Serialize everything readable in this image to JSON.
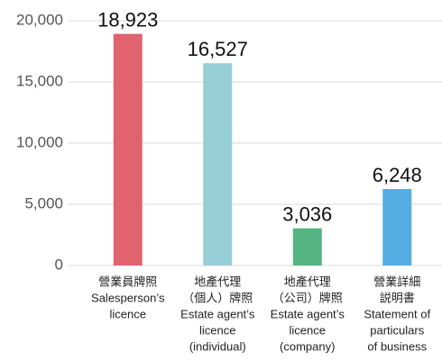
{
  "chart_data": {
    "type": "bar",
    "categories": [
      [
        "營業員牌照",
        "Salesperson’s",
        "licence"
      ],
      [
        "地產代理",
        "（個人）牌照",
        "Estate agent’s",
        "licence",
        "(individual)"
      ],
      [
        "地產代理",
        "（公司）牌照",
        "Estate agent’s",
        "licence",
        "(company)"
      ],
      [
        "營業詳細",
        "説明書",
        "Statement of",
        "particulars",
        "of business"
      ]
    ],
    "values": [
      18923,
      16527,
      3036,
      6248
    ],
    "value_labels": [
      "18,923",
      "16,527",
      "3,036",
      "6,248"
    ],
    "colors": [
      "#e0636e",
      "#96cfd6",
      "#55b482",
      "#55ade3"
    ],
    "ylim": [
      0,
      20000
    ],
    "yticks": [
      0,
      {
        "value": 5000,
        "label": "5,000"
      },
      {
        "value": 10000,
        "label": "10,000"
      },
      {
        "value": 15000,
        "label": "15,000"
      },
      {
        "value": 20000,
        "label": "20,000"
      }
    ],
    "grid": true
  }
}
